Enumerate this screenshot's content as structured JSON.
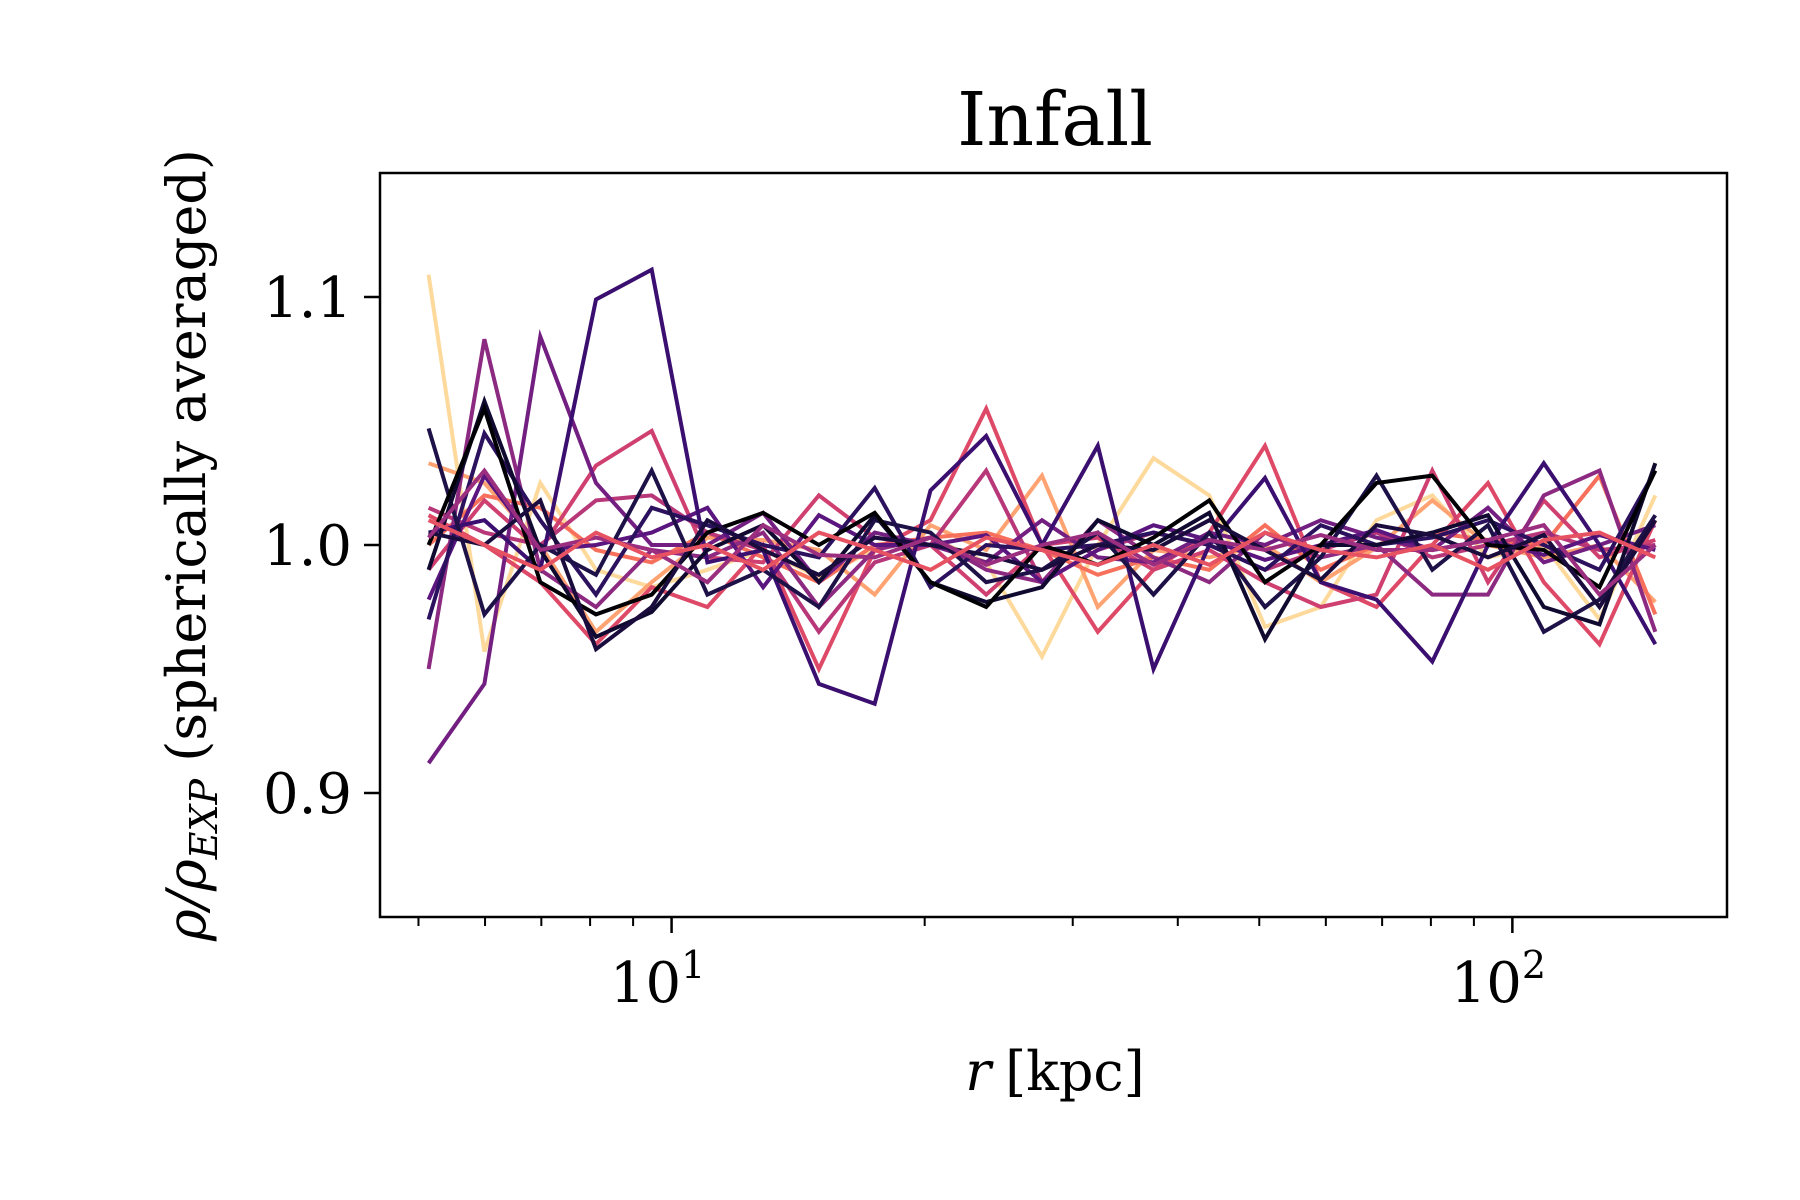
{
  "chart_data": {
    "type": "line",
    "title": "Infall",
    "xlabel": {
      "italic": "r",
      "rest": "[kpc]"
    },
    "ylabel": {
      "rho": "ρ",
      "sub": "EXP",
      "rest": " (spherically averaged)"
    },
    "xscale": "log",
    "xlim": [
      4.5,
      180
    ],
    "ylim": [
      0.85,
      1.15
    ],
    "xticks": [
      {
        "value": 10,
        "base": "10",
        "exp": "1"
      },
      {
        "value": 100,
        "base": "10",
        "exp": "2"
      }
    ],
    "yticks": [
      {
        "value": 0.9,
        "label": "0.9"
      },
      {
        "value": 1.0,
        "label": "1.0"
      },
      {
        "value": 1.1,
        "label": "1.1"
      }
    ],
    "grid": false,
    "x": [
      5.14,
      5.99,
      6.98,
      8.13,
      9.47,
      11.03,
      12.85,
      14.97,
      17.44,
      20.32,
      23.67,
      27.58,
      32.13,
      37.43,
      43.6,
      50.79,
      59.17,
      68.93,
      80.3,
      93.55,
      108.98,
      126.96,
      147.9
    ],
    "series": [
      {
        "color": "#fdd99b",
        "values": [
          1.109,
          0.957,
          1.025,
          0.99,
          0.983,
          0.99,
          0.998,
          0.987,
          0.998,
          1.003,
          0.993,
          0.955,
          1.0,
          1.035,
          1.02,
          0.967,
          0.975,
          1.01,
          1.02,
          0.995,
          1.0,
          0.97,
          1.02
        ]
      },
      {
        "color": "#fea371",
        "values": [
          1.033,
          1.025,
          1.0,
          0.965,
          0.985,
          1.003,
          1.002,
          0.998,
          0.98,
          1.008,
          0.998,
          1.028,
          0.975,
          0.998,
          0.995,
          1.0,
          0.985,
          0.999,
          1.018,
          1.0,
          0.995,
          1.0,
          0.977
        ]
      },
      {
        "color": "#f7705c",
        "values": [
          1.0,
          1.02,
          1.015,
          0.998,
          0.993,
          1.005,
          0.995,
          0.985,
          1.0,
          1.003,
          1.005,
          0.998,
          0.988,
          0.995,
          0.99,
          1.008,
          0.99,
          1.0,
          1.005,
          1.002,
          1.0,
          1.028,
          0.972
        ]
      },
      {
        "color": "#de4968",
        "values": [
          1.012,
          1.0,
          0.985,
          0.96,
          0.983,
          0.975,
          1.0,
          0.95,
          0.998,
          1.01,
          1.055,
          1.0,
          0.965,
          0.99,
          1.005,
          1.04,
          0.985,
          0.975,
          1.0,
          1.025,
          0.985,
          0.96,
          1.01
        ]
      },
      {
        "color": "#cf4070",
        "values": [
          0.99,
          1.018,
          0.998,
          1.032,
          1.046,
          0.995,
          0.993,
          1.02,
          1.003,
          1.0,
          0.98,
          1.0,
          1.003,
          0.99,
          0.998,
          0.985,
          0.975,
          0.98,
          1.03,
          0.985,
          1.018,
          0.995,
          1.002
        ]
      },
      {
        "color": "#b73779",
        "values": [
          1.015,
          1.005,
          1.0,
          1.018,
          1.02,
          1.005,
          0.998,
          0.965,
          0.993,
          1.0,
          1.03,
          0.985,
          0.998,
          1.005,
          1.0,
          0.99,
          0.998,
          1.005,
          0.995,
          1.0,
          1.005,
          0.998,
          1.0
        ]
      },
      {
        "color": "#8c2981",
        "values": [
          0.95,
          1.083,
          0.99,
          0.975,
          0.998,
          0.995,
          1.005,
          0.975,
          0.998,
          1.003,
          0.99,
          0.985,
          1.01,
          0.995,
          0.985,
          1.005,
          0.995,
          1.0,
          0.98,
          0.98,
          1.02,
          1.03,
          0.965
        ]
      },
      {
        "color": "#721f81",
        "values": [
          0.912,
          0.944,
          1.084,
          1.025,
          1.0,
          1.0,
          1.013,
          0.985,
          1.005,
          1.0,
          0.993,
          1.01,
          0.995,
          0.993,
          1.005,
          1.0,
          1.01,
          1.003,
          0.998,
          1.015,
          0.993,
          1.0,
          1.008
        ]
      },
      {
        "color": "#5a167e",
        "values": [
          0.978,
          1.028,
          0.998,
          1.0,
          1.005,
          1.015,
          0.983,
          1.012,
          1.0,
          1.0,
          1.004,
          0.985,
          0.998,
          1.008,
          1.002,
          0.994,
          1.0,
          1.006,
          0.998,
          1.002,
          0.996,
          1.004,
          0.998
        ]
      },
      {
        "color": "#3b0f70",
        "values": [
          1.005,
          1.01,
          0.99,
          1.099,
          1.111,
          0.993,
          0.998,
          0.944,
          0.936,
          1.022,
          1.044,
          1.0,
          1.04,
          0.95,
          1.0,
          1.027,
          0.985,
          0.978,
          0.953,
          1.0,
          1.033,
          1.0,
          0.96
        ]
      },
      {
        "color": "#2b115e",
        "values": [
          0.97,
          1.045,
          1.01,
          0.98,
          1.015,
          1.008,
          1.0,
          0.995,
          1.023,
          0.983,
          1.0,
          0.998,
          1.0,
          1.005,
          1.0,
          0.99,
          1.008,
          1.0,
          1.003,
          1.01,
          1.0,
          0.99,
          1.03
        ]
      },
      {
        "color": "#1d1147",
        "values": [
          1.047,
          0.972,
          1.0,
          0.988,
          1.03,
          0.98,
          0.99,
          0.975,
          1.01,
          1.005,
          0.985,
          0.99,
          1.005,
          0.98,
          1.005,
          0.975,
          0.995,
          1.028,
          0.99,
          1.008,
          0.965,
          0.978,
          1.012
        ]
      },
      {
        "color": "#100a30",
        "values": [
          0.99,
          1.058,
          0.998,
          0.963,
          0.973,
          0.998,
          1.008,
          0.985,
          1.012,
          0.985,
          0.977,
          0.983,
          1.01,
          1.0,
          1.013,
          0.962,
          1.0,
          1.0,
          1.005,
          1.012,
          0.975,
          0.968,
          1.033
        ]
      },
      {
        "color": "#000004",
        "values": [
          1.0,
          1.055,
          0.985,
          0.972,
          0.98,
          1.005,
          1.013,
          1.0,
          1.013,
          0.985,
          0.975,
          1.0,
          0.992,
          1.003,
          1.018,
          0.985,
          1.0,
          1.025,
          1.028,
          1.0,
          0.998,
          0.983,
          1.03
        ]
      },
      {
        "color": "#1a0d3e",
        "values": [
          1.005,
          1.0,
          1.018,
          0.958,
          0.975,
          1.01,
          0.998,
          0.988,
          1.003,
          1.0,
          0.996,
          0.99,
          1.0,
          0.998,
          1.01,
          0.998,
          0.986,
          1.008,
          1.004,
          0.995,
          1.004,
          0.975,
          1.01
        ]
      },
      {
        "color": "#9c2e7f",
        "values": [
          1.003,
          1.03,
          0.998,
          1.003,
          0.998,
          0.985,
          1.008,
          0.996,
          0.995,
          1.003,
          0.992,
          1.0,
          1.005,
          0.992,
          1.002,
          0.998,
          1.004,
          0.998,
          0.998,
          1.002,
          1.008,
          0.98,
          1.0
        ]
      },
      {
        "color": "#e75263",
        "values": [
          1.01,
          1.0,
          0.99,
          1.005,
          0.995,
          1.0,
          0.99,
          1.005,
          0.998,
          0.99,
          1.003,
          0.998,
          0.992,
          1.0,
          0.992,
          1.005,
          0.998,
          0.995,
          1.0,
          0.99,
          1.002,
          1.005,
          0.995
        ]
      }
    ]
  }
}
